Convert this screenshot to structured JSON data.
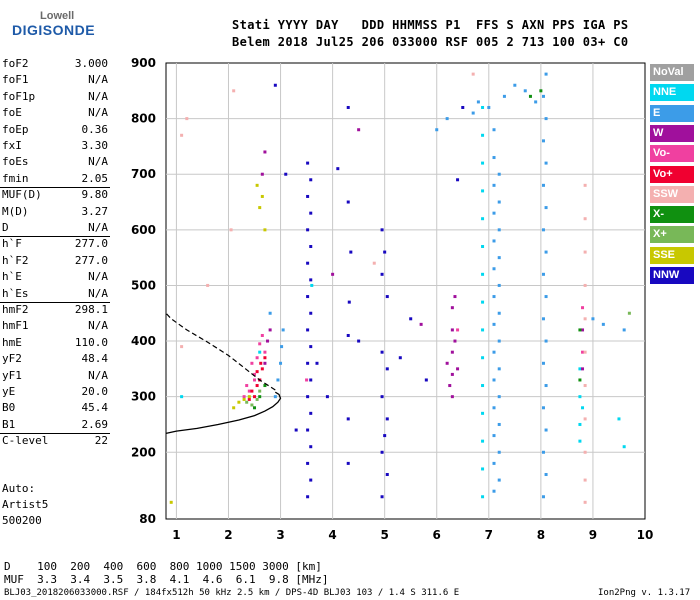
{
  "logo": {
    "top": "Lowell",
    "main": "DIGISONDE"
  },
  "header": {
    "line1": "Stati YYYY DAY   DDD HHMMSS P1  FFS S AXN PPS IGA PS",
    "line2": "Belem 2018 Jul25 206 033000 RSF 005 2 713 100 03+ C0"
  },
  "params": [
    {
      "label": "foF2",
      "value": "3.000"
    },
    {
      "label": "foF1",
      "value": "N/A"
    },
    {
      "label": "foF1p",
      "value": "N/A"
    },
    {
      "label": "foE",
      "value": "N/A"
    },
    {
      "label": "foEp",
      "value": "0.36"
    },
    {
      "label": "fxI",
      "value": "3.30"
    },
    {
      "label": "foEs",
      "value": "N/A"
    },
    {
      "label": "fmin",
      "value": "2.05"
    },
    {
      "label": "MUF(D)",
      "value": "9.80"
    },
    {
      "label": "M(D)",
      "value": "3.27"
    },
    {
      "label": "D",
      "value": "N/A"
    },
    {
      "label": "h`F",
      "value": "277.0"
    },
    {
      "label": "h`F2",
      "value": "277.0"
    },
    {
      "label": "h`E",
      "value": "N/A"
    },
    {
      "label": "h`Es",
      "value": "N/A"
    },
    {
      "label": "hmF2",
      "value": "298.1"
    },
    {
      "label": "hmF1",
      "value": "N/A"
    },
    {
      "label": "hmE",
      "value": "110.0"
    },
    {
      "label": "yF2",
      "value": "48.4"
    },
    {
      "label": "yF1",
      "value": "N/A"
    },
    {
      "label": "yE",
      "value": "20.0"
    },
    {
      "label": "B0",
      "value": "45.4"
    },
    {
      "label": "B1",
      "value": "2.69"
    },
    {
      "label": "C-level",
      "value": "22"
    }
  ],
  "auto_block": [
    "Auto:",
    "Artist5",
    "500200"
  ],
  "legend": [
    {
      "name": "NoVal",
      "color": "#a0a0a0"
    },
    {
      "name": "NNE",
      "color": "#00d8f0"
    },
    {
      "name": "E",
      "color": "#3c9ce8"
    },
    {
      "name": "W",
      "color": "#a0109c"
    },
    {
      "name": "Vo-",
      "color": "#f040a0"
    },
    {
      "name": "Vo+",
      "color": "#f00030"
    },
    {
      "name": "SSW",
      "color": "#f4b0b0"
    },
    {
      "name": "X-",
      "color": "#109010"
    },
    {
      "name": "X+",
      "color": "#78b858"
    },
    {
      "name": "SSE",
      "color": "#c8c800"
    },
    {
      "name": "NNW",
      "color": "#1808c0"
    }
  ],
  "footer": {
    "line1": "D    100  200  400  600  800 1000 1500 3000 [km]",
    "line2": "MUF  3.3  3.4  3.5  3.8  4.1  4.6  6.1  9.8 [MHz]",
    "line3": "BLJ03_2018206033000.RSF / 184fx512h 50 kHz 2.5 km / DPS-4D BLJ03 103 / 1.4 S 311.6 E",
    "version": "Ion2Png v. 1.3.17"
  },
  "chart_data": {
    "type": "scatter",
    "xlim": [
      0.8,
      10
    ],
    "ylim": [
      80,
      900
    ],
    "xticks": [
      1,
      2,
      3,
      4,
      5,
      6,
      7,
      8,
      9,
      10
    ],
    "yticks": [
      80,
      200,
      300,
      400,
      500,
      600,
      700,
      800,
      900
    ],
    "grid": true,
    "legend_position": "right",
    "profile_solid": [
      [
        0.8,
        234
      ],
      [
        1.0,
        238
      ],
      [
        1.4,
        243
      ],
      [
        1.8,
        250
      ],
      [
        2.2,
        258
      ],
      [
        2.5,
        266
      ],
      [
        2.7,
        274
      ],
      [
        2.85,
        282
      ],
      [
        2.95,
        290
      ],
      [
        3.0,
        297
      ],
      [
        2.97,
        304
      ],
      [
        2.9,
        308
      ]
    ],
    "profile_dashed": [
      [
        2.9,
        312
      ],
      [
        2.6,
        330
      ],
      [
        2.3,
        352
      ],
      [
        2.0,
        374
      ],
      [
        1.6,
        398
      ],
      [
        1.2,
        420
      ],
      [
        0.9,
        440
      ],
      [
        0.8,
        450
      ]
    ],
    "series": [
      {
        "color": "#1808c0",
        "points": [
          [
            3.52,
            120
          ],
          [
            3.52,
            180
          ],
          [
            3.52,
            240
          ],
          [
            3.52,
            300
          ],
          [
            3.52,
            360
          ],
          [
            3.52,
            420
          ],
          [
            3.52,
            480
          ],
          [
            3.52,
            540
          ],
          [
            3.52,
            600
          ],
          [
            3.52,
            660
          ],
          [
            3.52,
            720
          ],
          [
            3.58,
            150
          ],
          [
            3.58,
            210
          ],
          [
            3.58,
            270
          ],
          [
            3.58,
            330
          ],
          [
            3.58,
            390
          ],
          [
            3.58,
            450
          ],
          [
            3.58,
            510
          ],
          [
            3.58,
            570
          ],
          [
            3.58,
            630
          ],
          [
            3.58,
            690
          ],
          [
            4.3,
            180
          ],
          [
            4.3,
            260
          ],
          [
            4.3,
            410
          ],
          [
            4.3,
            650
          ],
          [
            4.3,
            820
          ],
          [
            4.35,
            560
          ],
          [
            4.32,
            470
          ],
          [
            4.95,
            120
          ],
          [
            4.95,
            200
          ],
          [
            4.95,
            300
          ],
          [
            4.95,
            380
          ],
          [
            4.95,
            520
          ],
          [
            4.95,
            600
          ],
          [
            5.05,
            160
          ],
          [
            5.05,
            260
          ],
          [
            5.05,
            350
          ],
          [
            5.05,
            480
          ],
          [
            5.0,
            230
          ],
          [
            5.0,
            560
          ],
          [
            3.3,
            240
          ],
          [
            3.7,
            360
          ],
          [
            3.9,
            300
          ],
          [
            4.1,
            710
          ],
          [
            4.5,
            400
          ],
          [
            5.5,
            440
          ],
          [
            5.8,
            330
          ],
          [
            6.4,
            690
          ],
          [
            6.5,
            820
          ],
          [
            5.3,
            370
          ],
          [
            2.9,
            860
          ],
          [
            3.1,
            700
          ]
        ]
      },
      {
        "color": "#3c9ce8",
        "points": [
          [
            2.9,
            300
          ],
          [
            2.95,
            330
          ],
          [
            3.0,
            360
          ],
          [
            3.02,
            390
          ],
          [
            3.05,
            420
          ],
          [
            7.1,
            130
          ],
          [
            7.1,
            180
          ],
          [
            7.1,
            230
          ],
          [
            7.1,
            280
          ],
          [
            7.1,
            330
          ],
          [
            7.1,
            380
          ],
          [
            7.1,
            430
          ],
          [
            7.1,
            480
          ],
          [
            7.1,
            530
          ],
          [
            7.1,
            580
          ],
          [
            7.1,
            630
          ],
          [
            7.1,
            680
          ],
          [
            7.1,
            730
          ],
          [
            7.1,
            780
          ],
          [
            7.2,
            150
          ],
          [
            7.2,
            200
          ],
          [
            7.2,
            250
          ],
          [
            7.2,
            300
          ],
          [
            7.2,
            350
          ],
          [
            7.2,
            400
          ],
          [
            7.2,
            450
          ],
          [
            7.2,
            500
          ],
          [
            7.2,
            550
          ],
          [
            7.2,
            600
          ],
          [
            7.2,
            650
          ],
          [
            7.2,
            700
          ],
          [
            7.0,
            820
          ],
          [
            7.3,
            840
          ],
          [
            7.5,
            860
          ],
          [
            7.7,
            850
          ],
          [
            7.9,
            830
          ],
          [
            8.05,
            120
          ],
          [
            8.05,
            200
          ],
          [
            8.05,
            280
          ],
          [
            8.05,
            360
          ],
          [
            8.05,
            440
          ],
          [
            8.05,
            520
          ],
          [
            8.05,
            600
          ],
          [
            8.05,
            680
          ],
          [
            8.05,
            760
          ],
          [
            8.05,
            840
          ],
          [
            8.1,
            160
          ],
          [
            8.1,
            240
          ],
          [
            8.1,
            320
          ],
          [
            8.1,
            400
          ],
          [
            8.1,
            480
          ],
          [
            8.1,
            560
          ],
          [
            8.1,
            640
          ],
          [
            8.1,
            720
          ],
          [
            8.1,
            800
          ],
          [
            8.1,
            880
          ],
          [
            6.2,
            800
          ],
          [
            6.0,
            780
          ],
          [
            9.0,
            440
          ],
          [
            9.2,
            430
          ],
          [
            9.6,
            420
          ],
          [
            2.8,
            450
          ],
          [
            6.7,
            810
          ],
          [
            6.8,
            830
          ]
        ]
      },
      {
        "color": "#00d8f0",
        "points": [
          [
            6.88,
            120
          ],
          [
            6.88,
            170
          ],
          [
            6.88,
            220
          ],
          [
            6.88,
            270
          ],
          [
            6.88,
            320
          ],
          [
            6.88,
            370
          ],
          [
            6.88,
            420
          ],
          [
            6.88,
            470
          ],
          [
            6.88,
            520
          ],
          [
            6.88,
            570
          ],
          [
            6.88,
            620
          ],
          [
            6.88,
            670
          ],
          [
            6.88,
            720
          ],
          [
            6.88,
            770
          ],
          [
            6.88,
            820
          ],
          [
            8.75,
            250
          ],
          [
            8.75,
            300
          ],
          [
            8.75,
            350
          ],
          [
            8.75,
            220
          ],
          [
            9.5,
            260
          ],
          [
            9.6,
            210
          ],
          [
            2.6,
            380
          ],
          [
            1.1,
            300
          ],
          [
            3.6,
            500
          ],
          [
            8.8,
            280
          ]
        ]
      },
      {
        "color": "#a0109c",
        "points": [
          [
            2.6,
            330
          ],
          [
            2.7,
            360
          ],
          [
            2.75,
            400
          ],
          [
            2.8,
            420
          ],
          [
            2.65,
            700
          ],
          [
            2.7,
            740
          ],
          [
            6.3,
            300
          ],
          [
            6.3,
            340
          ],
          [
            6.3,
            380
          ],
          [
            6.3,
            420
          ],
          [
            6.3,
            460
          ],
          [
            6.35,
            480
          ],
          [
            6.35,
            400
          ],
          [
            6.4,
            350
          ],
          [
            6.25,
            320
          ],
          [
            6.2,
            360
          ],
          [
            4.0,
            520
          ],
          [
            4.5,
            780
          ],
          [
            8.8,
            350
          ],
          [
            8.8,
            420
          ],
          [
            5.7,
            430
          ]
        ]
      },
      {
        "color": "#f040a0",
        "points": [
          [
            2.4,
            310
          ],
          [
            2.5,
            340
          ],
          [
            2.55,
            370
          ],
          [
            2.6,
            395
          ],
          [
            2.65,
            410
          ],
          [
            2.45,
            360
          ],
          [
            2.5,
            330
          ],
          [
            2.35,
            320
          ],
          [
            2.3,
            300
          ],
          [
            2.7,
            380
          ],
          [
            6.4,
            420
          ],
          [
            8.8,
            460
          ],
          [
            8.8,
            380
          ],
          [
            3.5,
            330
          ]
        ]
      },
      {
        "color": "#f00030",
        "points": [
          [
            2.5,
            300
          ],
          [
            2.55,
            320
          ],
          [
            2.6,
            330
          ],
          [
            2.65,
            350
          ],
          [
            2.7,
            370
          ],
          [
            2.45,
            310
          ],
          [
            2.55,
            345
          ],
          [
            2.62,
            360
          ],
          [
            2.4,
            295
          ]
        ]
      },
      {
        "color": "#f4b0b0",
        "points": [
          [
            1.1,
            770
          ],
          [
            1.2,
            800
          ],
          [
            1.6,
            500
          ],
          [
            2.1,
            850
          ],
          [
            2.05,
            600
          ],
          [
            8.85,
            500
          ],
          [
            8.85,
            560
          ],
          [
            8.85,
            620
          ],
          [
            8.85,
            680
          ],
          [
            8.85,
            440
          ],
          [
            8.85,
            380
          ],
          [
            8.85,
            320
          ],
          [
            8.85,
            260
          ],
          [
            8.85,
            200
          ],
          [
            8.85,
            150
          ],
          [
            8.85,
            110
          ],
          [
            6.7,
            880
          ],
          [
            4.8,
            540
          ],
          [
            1.1,
            390
          ]
        ]
      },
      {
        "color": "#109010",
        "points": [
          [
            2.5,
            280
          ],
          [
            2.6,
            300
          ],
          [
            2.7,
            320
          ],
          [
            8.75,
            330
          ],
          [
            8.75,
            420
          ],
          [
            8.0,
            850
          ],
          [
            7.8,
            840
          ]
        ]
      },
      {
        "color": "#78b858",
        "points": [
          [
            2.45,
            285
          ],
          [
            2.55,
            295
          ],
          [
            2.35,
            290
          ],
          [
            9.7,
            450
          ],
          [
            2.6,
            310
          ]
        ]
      },
      {
        "color": "#c8c800",
        "points": [
          [
            2.2,
            290
          ],
          [
            2.3,
            295
          ],
          [
            2.1,
            280
          ],
          [
            2.65,
            660
          ],
          [
            2.6,
            640
          ],
          [
            2.7,
            600
          ],
          [
            0.9,
            110
          ],
          [
            2.55,
            680
          ],
          [
            2.4,
            300
          ]
        ]
      }
    ]
  }
}
